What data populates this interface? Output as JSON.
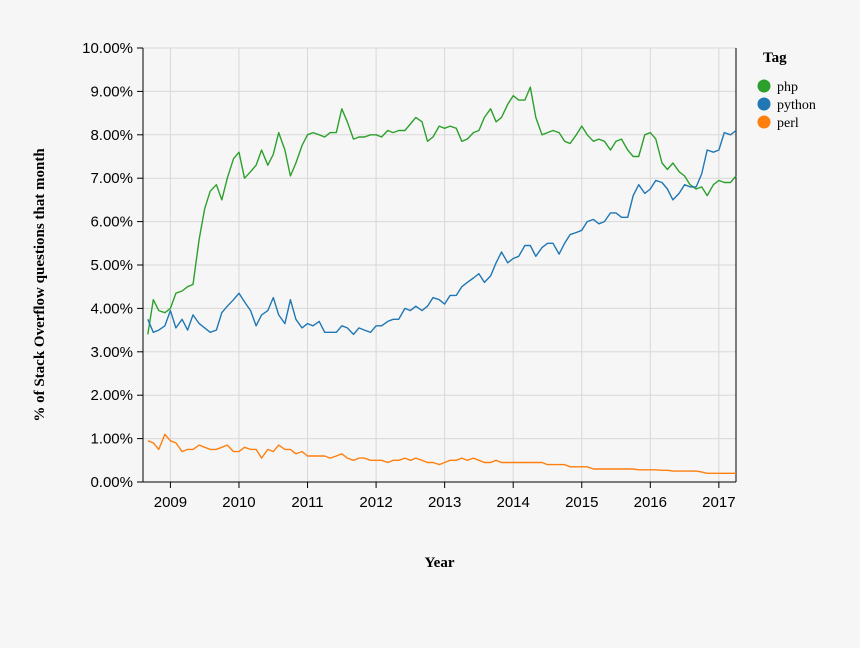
{
  "chart_data": {
    "type": "line",
    "xlabel": "Year",
    "ylabel": "% of Stack Overflow questions that month",
    "x_tick_labels": [
      "2009",
      "2010",
      "2011",
      "2012",
      "2013",
      "2014",
      "2015",
      "2016",
      "2017"
    ],
    "y_tick_labels": [
      "0.00%",
      "1.00%",
      "2.00%",
      "3.00%",
      "4.00%",
      "5.00%",
      "6.00%",
      "7.00%",
      "8.00%",
      "9.00%",
      "10.00%"
    ],
    "xlim": [
      2008.6,
      2017.25
    ],
    "ylim": [
      0,
      10
    ],
    "grid": true,
    "legend": {
      "title": "Tag",
      "placement": "right"
    },
    "series": [
      {
        "name": "php",
        "color": "#2ca02c",
        "x": [
          2008.67,
          2008.75,
          2008.83,
          2008.92,
          2009.0,
          2009.08,
          2009.17,
          2009.25,
          2009.33,
          2009.42,
          2009.5,
          2009.58,
          2009.67,
          2009.75,
          2009.83,
          2009.92,
          2010.0,
          2010.08,
          2010.17,
          2010.25,
          2010.33,
          2010.42,
          2010.5,
          2010.58,
          2010.67,
          2010.75,
          2010.83,
          2010.92,
          2011.0,
          2011.08,
          2011.17,
          2011.25,
          2011.33,
          2011.42,
          2011.5,
          2011.58,
          2011.67,
          2011.75,
          2011.83,
          2011.92,
          2012.0,
          2012.08,
          2012.17,
          2012.25,
          2012.33,
          2012.42,
          2012.5,
          2012.58,
          2012.67,
          2012.75,
          2012.83,
          2012.92,
          2013.0,
          2013.08,
          2013.17,
          2013.25,
          2013.33,
          2013.42,
          2013.5,
          2013.58,
          2013.67,
          2013.75,
          2013.83,
          2013.92,
          2014.0,
          2014.08,
          2014.17,
          2014.25,
          2014.33,
          2014.42,
          2014.5,
          2014.58,
          2014.67,
          2014.75,
          2014.83,
          2014.92,
          2015.0,
          2015.08,
          2015.17,
          2015.25,
          2015.33,
          2015.42,
          2015.5,
          2015.58,
          2015.67,
          2015.75,
          2015.83,
          2015.92,
          2016.0,
          2016.08,
          2016.17,
          2016.25,
          2016.33,
          2016.42,
          2016.5,
          2016.58,
          2016.67,
          2016.75,
          2016.83,
          2016.92,
          2017.0,
          2017.08,
          2017.17,
          2017.25
        ],
        "values": [
          3.4,
          4.2,
          3.95,
          3.9,
          4.0,
          4.35,
          4.4,
          4.5,
          4.55,
          5.6,
          6.3,
          6.7,
          6.85,
          6.5,
          7.0,
          7.45,
          7.6,
          7.0,
          7.15,
          7.3,
          7.65,
          7.3,
          7.55,
          8.05,
          7.65,
          7.05,
          7.35,
          7.75,
          8.0,
          8.05,
          8.0,
          7.95,
          8.05,
          8.05,
          8.6,
          8.3,
          7.9,
          7.95,
          7.95,
          8.0,
          8.0,
          7.95,
          8.1,
          8.05,
          8.1,
          8.1,
          8.25,
          8.4,
          8.3,
          7.85,
          7.95,
          8.2,
          8.15,
          8.2,
          8.15,
          7.85,
          7.9,
          8.05,
          8.1,
          8.4,
          8.6,
          8.3,
          8.4,
          8.7,
          8.9,
          8.8,
          8.8,
          9.1,
          8.4,
          8.0,
          8.05,
          8.1,
          8.05,
          7.85,
          7.8,
          8.0,
          8.2,
          8.0,
          7.85,
          7.9,
          7.85,
          7.65,
          7.85,
          7.9,
          7.65,
          7.5,
          7.5,
          8.0,
          8.05,
          7.9,
          7.35,
          7.2,
          7.35,
          7.15,
          7.05,
          6.85,
          6.75,
          6.8,
          6.6,
          6.85,
          6.95,
          6.9,
          6.9,
          7.05
        ]
      },
      {
        "name": "python",
        "color": "#1f77b4",
        "x": [
          2008.67,
          2008.75,
          2008.83,
          2008.92,
          2009.0,
          2009.08,
          2009.17,
          2009.25,
          2009.33,
          2009.42,
          2009.5,
          2009.58,
          2009.67,
          2009.75,
          2009.83,
          2009.92,
          2010.0,
          2010.08,
          2010.17,
          2010.25,
          2010.33,
          2010.42,
          2010.5,
          2010.58,
          2010.67,
          2010.75,
          2010.83,
          2010.92,
          2011.0,
          2011.08,
          2011.17,
          2011.25,
          2011.33,
          2011.42,
          2011.5,
          2011.58,
          2011.67,
          2011.75,
          2011.83,
          2011.92,
          2012.0,
          2012.08,
          2012.17,
          2012.25,
          2012.33,
          2012.42,
          2012.5,
          2012.58,
          2012.67,
          2012.75,
          2012.83,
          2012.92,
          2013.0,
          2013.08,
          2013.17,
          2013.25,
          2013.33,
          2013.42,
          2013.5,
          2013.58,
          2013.67,
          2013.75,
          2013.83,
          2013.92,
          2014.0,
          2014.08,
          2014.17,
          2014.25,
          2014.33,
          2014.42,
          2014.5,
          2014.58,
          2014.67,
          2014.75,
          2014.83,
          2014.92,
          2015.0,
          2015.08,
          2015.17,
          2015.25,
          2015.33,
          2015.42,
          2015.5,
          2015.58,
          2015.67,
          2015.75,
          2015.83,
          2015.92,
          2016.0,
          2016.08,
          2016.17,
          2016.25,
          2016.33,
          2016.42,
          2016.5,
          2016.58,
          2016.67,
          2016.75,
          2016.83,
          2016.92,
          2017.0,
          2017.08,
          2017.17,
          2017.25
        ],
        "values": [
          3.75,
          3.45,
          3.5,
          3.6,
          3.95,
          3.55,
          3.75,
          3.5,
          3.85,
          3.65,
          3.55,
          3.45,
          3.5,
          3.9,
          4.05,
          4.2,
          4.35,
          4.15,
          3.95,
          3.6,
          3.85,
          3.95,
          4.25,
          3.85,
          3.65,
          4.2,
          3.75,
          3.55,
          3.65,
          3.6,
          3.7,
          3.45,
          3.45,
          3.45,
          3.6,
          3.55,
          3.4,
          3.55,
          3.5,
          3.45,
          3.6,
          3.6,
          3.7,
          3.75,
          3.75,
          4.0,
          3.95,
          4.05,
          3.95,
          4.05,
          4.25,
          4.2,
          4.1,
          4.3,
          4.3,
          4.5,
          4.6,
          4.7,
          4.8,
          4.6,
          4.75,
          5.05,
          5.3,
          5.05,
          5.15,
          5.2,
          5.45,
          5.45,
          5.2,
          5.4,
          5.5,
          5.5,
          5.25,
          5.5,
          5.7,
          5.75,
          5.8,
          6.0,
          6.05,
          5.95,
          6.0,
          6.2,
          6.2,
          6.1,
          6.1,
          6.6,
          6.85,
          6.65,
          6.75,
          6.95,
          6.9,
          6.75,
          6.5,
          6.65,
          6.85,
          6.8,
          6.8,
          7.1,
          7.65,
          7.6,
          7.65,
          8.05,
          8.0,
          8.1
        ]
      },
      {
        "name": "perl",
        "color": "#ff7f0e",
        "x": [
          2008.67,
          2008.75,
          2008.83,
          2008.92,
          2009.0,
          2009.08,
          2009.17,
          2009.25,
          2009.33,
          2009.42,
          2009.5,
          2009.58,
          2009.67,
          2009.75,
          2009.83,
          2009.92,
          2010.0,
          2010.08,
          2010.17,
          2010.25,
          2010.33,
          2010.42,
          2010.5,
          2010.58,
          2010.67,
          2010.75,
          2010.83,
          2010.92,
          2011.0,
          2011.08,
          2011.17,
          2011.25,
          2011.33,
          2011.42,
          2011.5,
          2011.58,
          2011.67,
          2011.75,
          2011.83,
          2011.92,
          2012.0,
          2012.08,
          2012.17,
          2012.25,
          2012.33,
          2012.42,
          2012.5,
          2012.58,
          2012.67,
          2012.75,
          2012.83,
          2012.92,
          2013.0,
          2013.08,
          2013.17,
          2013.25,
          2013.33,
          2013.42,
          2013.5,
          2013.58,
          2013.67,
          2013.75,
          2013.83,
          2013.92,
          2014.0,
          2014.08,
          2014.17,
          2014.25,
          2014.33,
          2014.42,
          2014.5,
          2014.58,
          2014.67,
          2014.75,
          2014.83,
          2014.92,
          2015.0,
          2015.08,
          2015.17,
          2015.25,
          2015.33,
          2015.42,
          2015.5,
          2015.58,
          2015.67,
          2015.75,
          2015.83,
          2015.92,
          2016.0,
          2016.08,
          2016.17,
          2016.25,
          2016.33,
          2016.42,
          2016.5,
          2016.58,
          2016.67,
          2016.75,
          2016.83,
          2016.92,
          2017.0,
          2017.08,
          2017.17,
          2017.25
        ],
        "values": [
          0.95,
          0.9,
          0.75,
          1.1,
          0.95,
          0.9,
          0.7,
          0.75,
          0.75,
          0.85,
          0.8,
          0.75,
          0.75,
          0.8,
          0.85,
          0.7,
          0.7,
          0.8,
          0.75,
          0.75,
          0.55,
          0.75,
          0.7,
          0.85,
          0.75,
          0.75,
          0.65,
          0.7,
          0.6,
          0.6,
          0.6,
          0.6,
          0.55,
          0.6,
          0.65,
          0.55,
          0.5,
          0.55,
          0.55,
          0.5,
          0.5,
          0.5,
          0.45,
          0.5,
          0.5,
          0.55,
          0.5,
          0.55,
          0.5,
          0.45,
          0.45,
          0.4,
          0.45,
          0.5,
          0.5,
          0.55,
          0.5,
          0.55,
          0.5,
          0.45,
          0.45,
          0.5,
          0.45,
          0.45,
          0.45,
          0.45,
          0.45,
          0.45,
          0.45,
          0.45,
          0.4,
          0.4,
          0.4,
          0.4,
          0.35,
          0.35,
          0.35,
          0.35,
          0.3,
          0.3,
          0.3,
          0.3,
          0.3,
          0.3,
          0.3,
          0.3,
          0.28,
          0.28,
          0.28,
          0.28,
          0.27,
          0.27,
          0.25,
          0.25,
          0.25,
          0.25,
          0.25,
          0.23,
          0.2,
          0.2,
          0.2,
          0.2,
          0.2,
          0.2
        ]
      }
    ]
  }
}
